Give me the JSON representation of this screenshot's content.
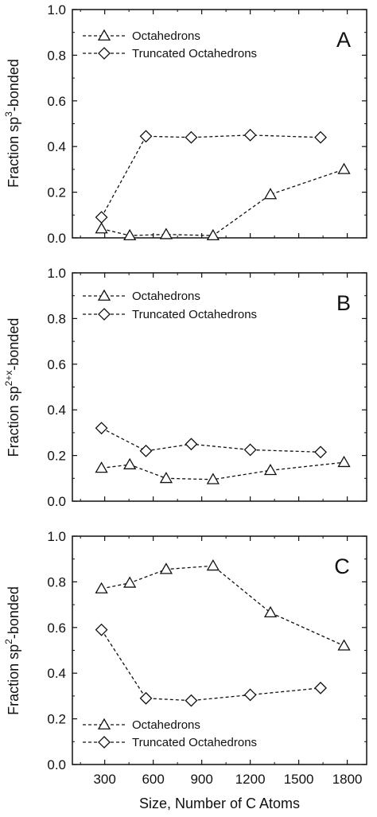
{
  "figure": {
    "xlabel": "Size, Number of C Atoms",
    "x_tick_labels": [
      "300",
      "600",
      "900",
      "1200",
      "1500",
      "1800"
    ]
  },
  "chart_data": [
    {
      "type": "line",
      "panel_label": "A",
      "xlabel": "Size, Number of C Atoms",
      "ylabel_parts": [
        "Fraction sp",
        "3",
        "-bonded"
      ],
      "xlim": [
        100,
        1920
      ],
      "ylim": [
        0,
        1.0
      ],
      "y_tick_labels": [
        "0.0",
        "0.2",
        "0.4",
        "0.6",
        "0.8",
        "1.0"
      ],
      "legend_position": "top-left",
      "series": [
        {
          "name": "Octahedrons",
          "marker": "triangle",
          "x": [
            280,
            455,
            680,
            970,
            1325,
            1780
          ],
          "y": [
            0.04,
            0.01,
            0.015,
            0.01,
            0.19,
            0.3
          ]
        },
        {
          "name": "Truncated Octahedrons",
          "marker": "diamond",
          "x": [
            280,
            555,
            835,
            1200,
            1635
          ],
          "y": [
            0.09,
            0.445,
            0.44,
            0.45,
            0.44
          ]
        }
      ]
    },
    {
      "type": "line",
      "panel_label": "B",
      "xlabel": "Size, Number of C Atoms",
      "ylabel_parts": [
        "Fraction sp",
        "2+x",
        "-bonded"
      ],
      "xlim": [
        100,
        1920
      ],
      "ylim": [
        0,
        1.0
      ],
      "y_tick_labels": [
        "0.0",
        "0.2",
        "0.4",
        "0.6",
        "0.8",
        "1.0"
      ],
      "legend_position": "top-left",
      "series": [
        {
          "name": "Octahedrons",
          "marker": "triangle",
          "x": [
            280,
            455,
            680,
            970,
            1325,
            1780
          ],
          "y": [
            0.145,
            0.16,
            0.1,
            0.095,
            0.135,
            0.17
          ]
        },
        {
          "name": "Truncated Octahedrons",
          "marker": "diamond",
          "x": [
            280,
            555,
            835,
            1200,
            1635
          ],
          "y": [
            0.32,
            0.22,
            0.25,
            0.225,
            0.215
          ]
        }
      ]
    },
    {
      "type": "line",
      "panel_label": "C",
      "xlabel": "Size, Number of C Atoms",
      "ylabel_parts": [
        "Fraction sp",
        "2",
        "-bonded"
      ],
      "xlim": [
        100,
        1920
      ],
      "ylim": [
        0,
        1.0
      ],
      "y_tick_labels": [
        "0.0",
        "0.2",
        "0.4",
        "0.6",
        "0.8",
        "1.0"
      ],
      "legend_position": "bottom-left",
      "series": [
        {
          "name": "Octahedrons",
          "marker": "triangle",
          "x": [
            280,
            455,
            680,
            970,
            1325,
            1780
          ],
          "y": [
            0.77,
            0.795,
            0.855,
            0.87,
            0.665,
            0.52
          ]
        },
        {
          "name": "Truncated Octahedrons",
          "marker": "diamond",
          "x": [
            280,
            555,
            835,
            1200,
            1635
          ],
          "y": [
            0.59,
            0.29,
            0.28,
            0.305,
            0.335
          ]
        }
      ]
    }
  ]
}
